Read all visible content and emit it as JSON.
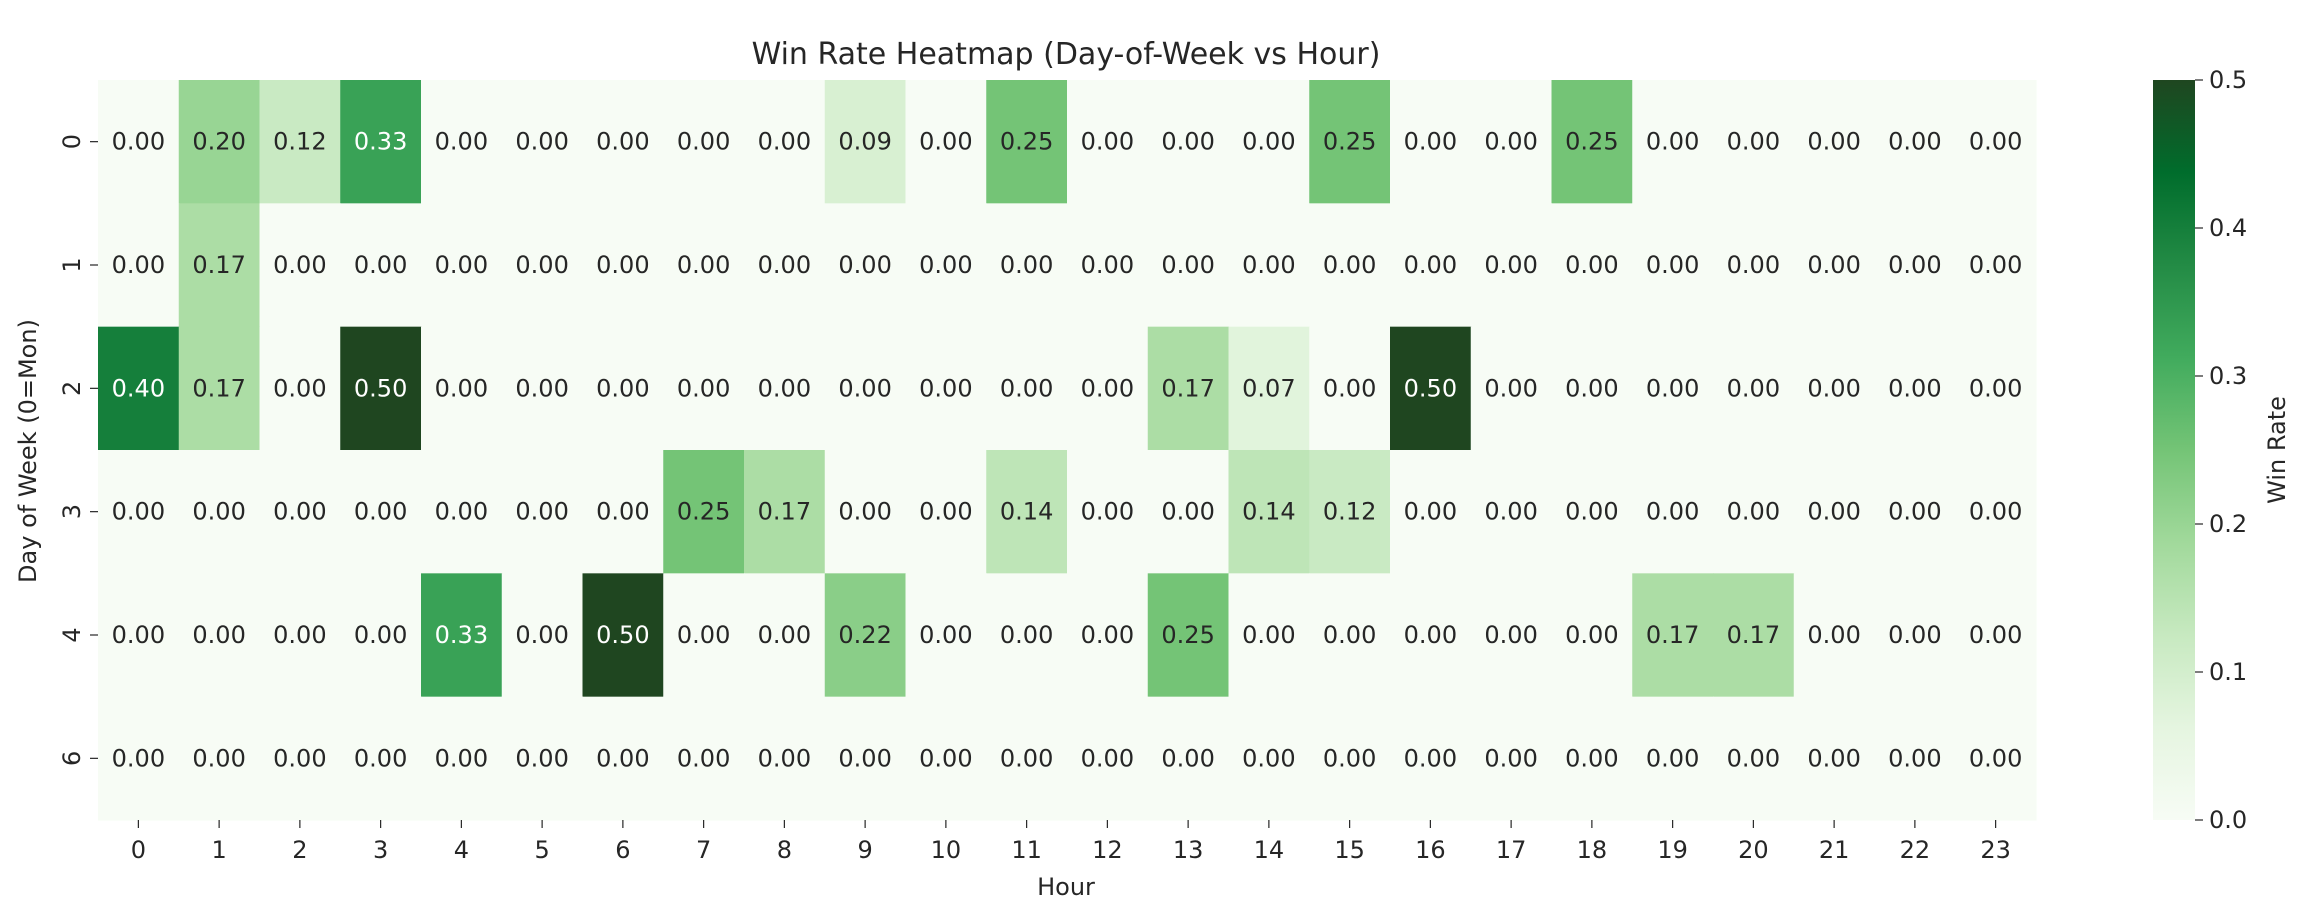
{
  "chart_data": {
    "type": "heatmap",
    "title": "Win Rate Heatmap (Day-of-Week vs Hour)",
    "xlabel": "Hour",
    "ylabel": "Day of Week (0=Mon)",
    "x_categories": [
      "0",
      "1",
      "2",
      "3",
      "4",
      "5",
      "6",
      "7",
      "8",
      "9",
      "10",
      "11",
      "12",
      "13",
      "14",
      "15",
      "16",
      "17",
      "18",
      "19",
      "20",
      "21",
      "22",
      "23"
    ],
    "y_categories": [
      "0",
      "1",
      "2",
      "3",
      "4",
      "6"
    ],
    "values": [
      [
        0.0,
        0.2,
        0.12,
        0.33,
        0.0,
        0.0,
        0.0,
        0.0,
        0.0,
        0.09,
        0.0,
        0.25,
        0.0,
        0.0,
        0.0,
        0.25,
        0.0,
        0.0,
        0.25,
        0.0,
        0.0,
        0.0,
        0.0,
        0.0
      ],
      [
        0.0,
        0.17,
        0.0,
        0.0,
        0.0,
        0.0,
        0.0,
        0.0,
        0.0,
        0.0,
        0.0,
        0.0,
        0.0,
        0.0,
        0.0,
        0.0,
        0.0,
        0.0,
        0.0,
        0.0,
        0.0,
        0.0,
        0.0,
        0.0
      ],
      [
        0.4,
        0.17,
        0.0,
        0.5,
        0.0,
        0.0,
        0.0,
        0.0,
        0.0,
        0.0,
        0.0,
        0.0,
        0.0,
        0.17,
        0.07,
        0.0,
        0.5,
        0.0,
        0.0,
        0.0,
        0.0,
        0.0,
        0.0,
        0.0
      ],
      [
        0.0,
        0.0,
        0.0,
        0.0,
        0.0,
        0.0,
        0.0,
        0.25,
        0.17,
        0.0,
        0.0,
        0.14,
        0.0,
        0.0,
        0.14,
        0.12,
        0.0,
        0.0,
        0.0,
        0.0,
        0.0,
        0.0,
        0.0,
        0.0
      ],
      [
        0.0,
        0.0,
        0.0,
        0.0,
        0.33,
        0.0,
        0.5,
        0.0,
        0.0,
        0.22,
        0.0,
        0.0,
        0.0,
        0.25,
        0.0,
        0.0,
        0.0,
        0.0,
        0.0,
        0.17,
        0.17,
        0.0,
        0.0,
        0.0
      ],
      [
        0.0,
        0.0,
        0.0,
        0.0,
        0.0,
        0.0,
        0.0,
        0.0,
        0.0,
        0.0,
        0.0,
        0.0,
        0.0,
        0.0,
        0.0,
        0.0,
        0.0,
        0.0,
        0.0,
        0.0,
        0.0,
        0.0,
        0.0,
        0.0
      ]
    ],
    "value_format": "0.00",
    "colorbar": {
      "label": "Win Rate",
      "range": [
        0.0,
        0.5
      ],
      "ticks": [
        "0.0",
        "0.1",
        "0.2",
        "0.3",
        "0.4",
        "0.5"
      ]
    },
    "colormap": {
      "low": "#f7fcf5",
      "stops": [
        "#f7fcf5",
        "#e5f5e0",
        "#c7e9c0",
        "#a1d99b",
        "#74c476",
        "#41ab5d",
        "#238b45",
        "#006d2c",
        "#1f4620"
      ],
      "high": "#1f4620"
    }
  }
}
